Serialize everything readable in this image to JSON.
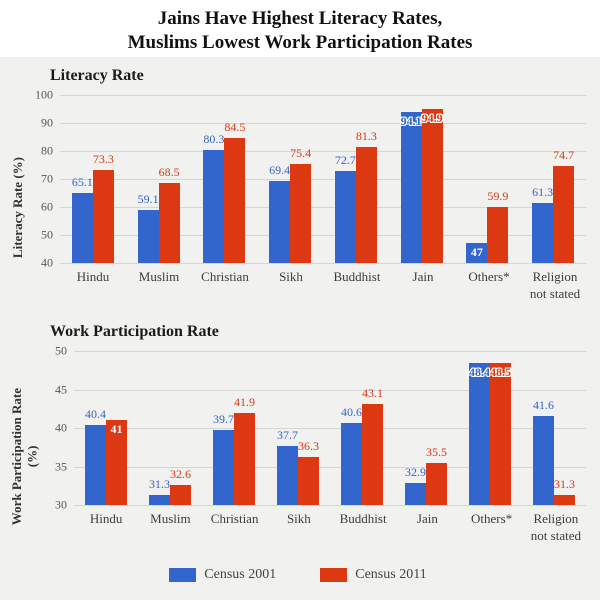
{
  "page": {
    "title_line1": "Jains Have Highest Literacy Rates,",
    "title_line2": "Muslims Lowest Work Participation Rates"
  },
  "colors": {
    "panel_background": "#f1f1ef",
    "gridline": "#d6d6d3",
    "census_2001": "#3366cc",
    "census_2011": "#dc3912"
  },
  "legend": {
    "items": [
      {
        "label": "Census 2001",
        "color": "#3366cc"
      },
      {
        "label": "Census 2011",
        "color": "#dc3912"
      }
    ]
  },
  "chart_data": [
    {
      "type": "bar",
      "title": "Literacy Rate",
      "ylabel": "Literacy Rate (%)",
      "ylim": [
        40,
        100
      ],
      "yticks": [
        100,
        90,
        80,
        70,
        60,
        50,
        40
      ],
      "grid": true,
      "categories": [
        "Hindu",
        "Muslim",
        "Christian",
        "Sikh",
        "Buddhist",
        "Jain",
        "Others*",
        "Religion not stated"
      ],
      "series": [
        {
          "name": "Census 2001",
          "color": "#3366cc",
          "values": [
            65.1,
            59.1,
            80.3,
            69.4,
            72.7,
            94.1,
            47,
            61.3
          ],
          "label_pos": [
            "above",
            "above",
            "above",
            "above",
            "above",
            "outline",
            "inside",
            "above"
          ]
        },
        {
          "name": "Census 2011",
          "color": "#dc3912",
          "values": [
            73.3,
            68.5,
            84.5,
            75.4,
            81.3,
            94.9,
            59.9,
            74.7
          ],
          "label_pos": [
            "above",
            "above",
            "above",
            "above",
            "above",
            "outline",
            "above",
            "above"
          ]
        }
      ]
    },
    {
      "type": "bar",
      "title": "Work Participation Rate",
      "ylabel": "Work Participation Rate\n(%)",
      "ylim": [
        30,
        50
      ],
      "yticks": [
        50,
        45,
        40,
        35,
        30
      ],
      "grid": true,
      "categories": [
        "Hindu",
        "Muslim",
        "Christian",
        "Sikh",
        "Buddhist",
        "Jain",
        "Others*",
        "Religion not stated"
      ],
      "series": [
        {
          "name": "Census 2001",
          "color": "#3366cc",
          "values": [
            40.4,
            31.3,
            39.7,
            37.7,
            40.6,
            32.9,
            48.4,
            41.6
          ],
          "label_pos": [
            "above",
            "above",
            "above",
            "above",
            "above",
            "above",
            "outline",
            "above"
          ]
        },
        {
          "name": "Census 2011",
          "color": "#dc3912",
          "values": [
            41,
            32.6,
            41.9,
            36.3,
            43.1,
            35.5,
            48.5,
            31.3
          ],
          "label_pos": [
            "inside",
            "above",
            "above",
            "above",
            "above",
            "above",
            "outline",
            "above"
          ]
        }
      ]
    }
  ]
}
